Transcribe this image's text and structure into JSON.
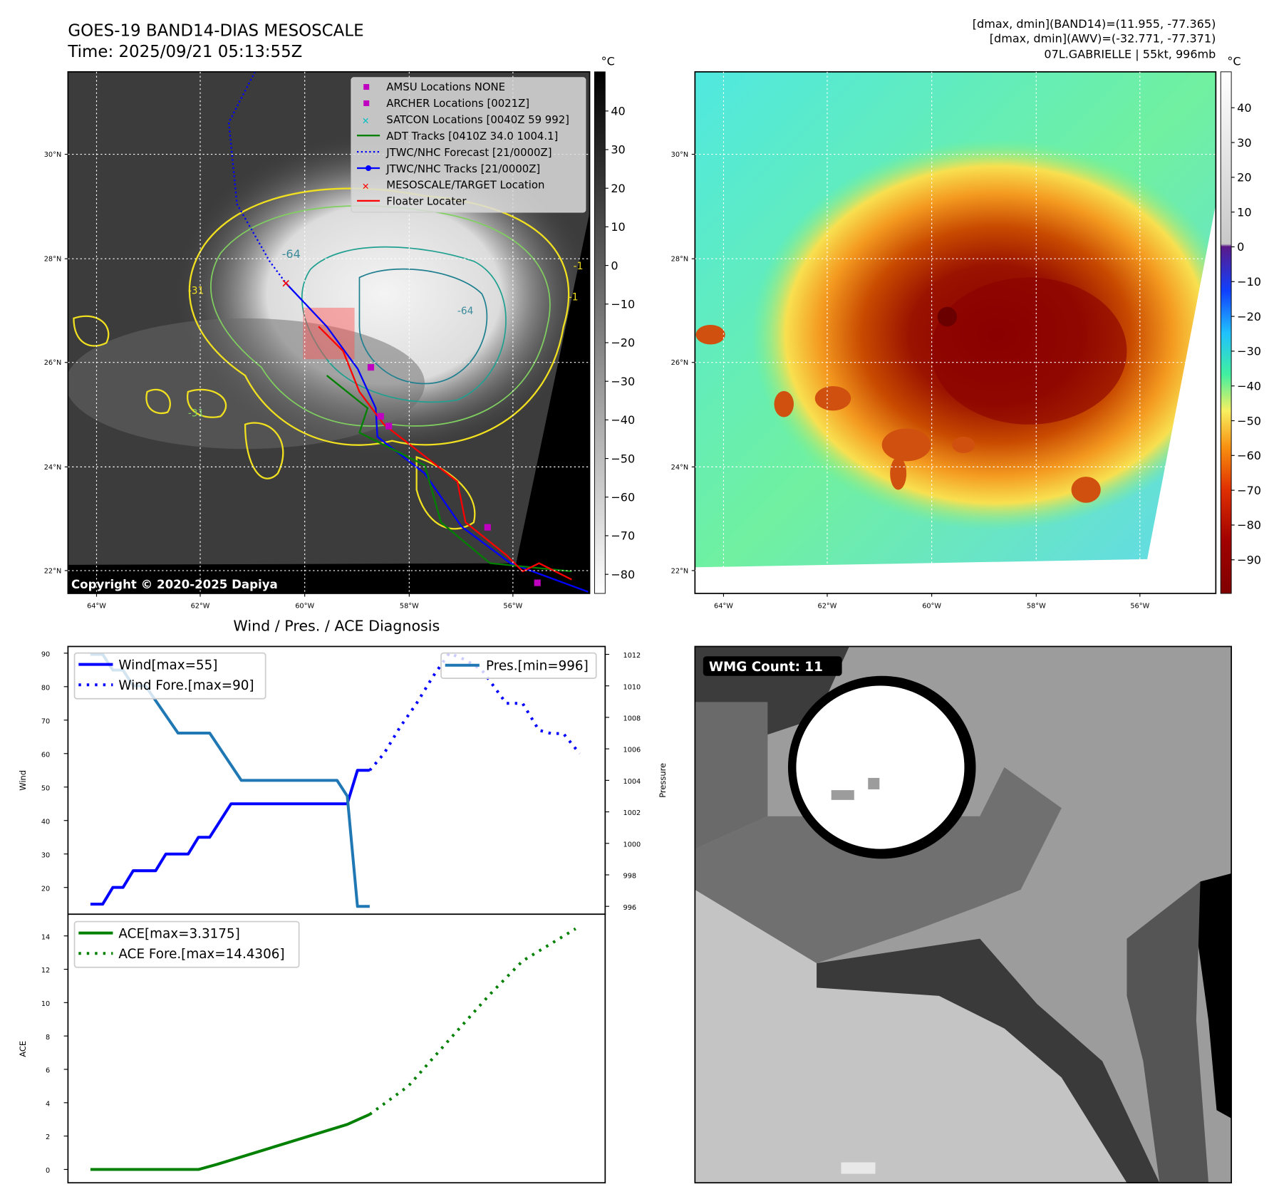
{
  "header": {
    "title": "GOES-19 BAND14-DIAS MESOSCALE",
    "time": "Time: 2025/09/21 05:13:55Z",
    "stats_band14": "[dmax, dmin](BAND14)=(11.955, -77.365)",
    "stats_awv": "[dmax, dmin](AWV)=(-32.771, -77.371)",
    "storm": "07L.GABRIELLE | 55kt, 996mb"
  },
  "map_left": {
    "unit": "°C",
    "copyright": "Copyright © 2020-2025 Dapiya",
    "lon_ticks": [
      "64°W",
      "62°W",
      "60°W",
      "58°W",
      "56°W"
    ],
    "lat_ticks": [
      "30°N",
      "28°N",
      "26°N",
      "24°N",
      "22°N"
    ],
    "colorbar_ticks": [
      "40",
      "30",
      "20",
      "10",
      "0",
      "−10",
      "−20",
      "−30",
      "−40",
      "−50",
      "−60",
      "−70",
      "−80"
    ],
    "contour_labels": [
      "-64",
      "-64",
      "-31",
      "-31",
      "-1",
      "-1"
    ],
    "legend": [
      {
        "label": "AMSU Locations NONE",
        "color": "#c000c0",
        "marker": "square"
      },
      {
        "label": "ARCHER Locations [0021Z]",
        "color": "#c000c0",
        "marker": "square"
      },
      {
        "label": "SATCON Locations [0040Z 59 992]",
        "color": "#00c0c0",
        "marker": "x"
      },
      {
        "label": "ADT Tracks [0410Z 34.0 1004.1]",
        "color": "#008000",
        "marker": "line"
      },
      {
        "label": "JTWC/NHC Forecast [21/0000Z]",
        "color": "#0000ff",
        "marker": "dotted"
      },
      {
        "label": "JTWC/NHC Tracks [21/0000Z]",
        "color": "#0000ff",
        "marker": "line-dot"
      },
      {
        "label": "MESOSCALE/TARGET Location",
        "color": "#ff0000",
        "marker": "x"
      },
      {
        "label": "Floater Locater",
        "color": "#ff0000",
        "marker": "line"
      }
    ]
  },
  "map_right": {
    "unit": "°C",
    "lon_ticks": [
      "64°W",
      "62°W",
      "60°W",
      "58°W",
      "56°W"
    ],
    "lat_ticks": [
      "30°N",
      "28°N",
      "26°N",
      "24°N",
      "22°N"
    ],
    "colorbar_ticks": [
      "40",
      "30",
      "20",
      "10",
      "0",
      "−10",
      "−20",
      "−30",
      "−40",
      "−50",
      "−60",
      "−70",
      "−80",
      "−90"
    ]
  },
  "wmg": {
    "label": "WMG Count: 11"
  },
  "chart_data": [
    {
      "type": "line",
      "title": "Wind / Pres. / ACE Diagnosis",
      "ylabel": "Wind",
      "y2label": "Pressure",
      "ylim": [
        12,
        92
      ],
      "y2lim": [
        995.5,
        1012.5
      ],
      "xlim": [
        -2.2,
        50.5
      ],
      "yticks": [
        "90",
        "80",
        "70",
        "60",
        "50",
        "40",
        "30",
        "20"
      ],
      "y2ticks": [
        "1012",
        "1010",
        "1008",
        "1006",
        "1004",
        "1002",
        "1000",
        "998",
        "996"
      ],
      "legend_left": [
        "Wind[max=55]",
        "Wind Fore.[max=90]"
      ],
      "legend_right": [
        "Pres.[min=996]"
      ],
      "series": [
        {
          "name": "Wind[max=55]",
          "axis": "left",
          "style": "solid",
          "color": "#0000ff",
          "x": [
            0,
            1.2,
            2.2,
            3.2,
            4.2,
            6.4,
            7.4,
            9.6,
            10.6,
            11.7,
            13.8,
            25.2,
            26.2,
            27.4
          ],
          "y": [
            15,
            15,
            20,
            20,
            25,
            25,
            30,
            30,
            35,
            35,
            45,
            45,
            55,
            55
          ]
        },
        {
          "name": "Wind Fore.[max=90]",
          "axis": "left",
          "style": "dotted",
          "color": "#0000ff",
          "x": [
            27.4,
            28.8,
            30.4,
            32,
            33.6,
            35.2,
            36.8,
            38.4,
            39.6,
            40.8,
            42.4,
            43.2,
            44,
            45.2,
            46.4,
            48
          ],
          "y": [
            55,
            60,
            68,
            75,
            83,
            90,
            88,
            85,
            80,
            75,
            75,
            71,
            67,
            66,
            66,
            60
          ]
        },
        {
          "name": "Pres.[min=996]",
          "axis": "right",
          "style": "solid",
          "color": "#1f77b4",
          "x": [
            0,
            1.2,
            2.2,
            3.2,
            4.2,
            5.4,
            8.6,
            11.7,
            14.8,
            24.2,
            25.2,
            26.2,
            27.4
          ],
          "y": [
            1012,
            1012,
            1011,
            1011,
            1010,
            1010,
            1007,
            1007,
            1004,
            1004,
            1003,
            996,
            996
          ]
        }
      ]
    },
    {
      "type": "line",
      "ylabel": "ACE",
      "ylim": [
        -0.8,
        15.3
      ],
      "xlim": [
        -2.2,
        50.5
      ],
      "yticks": [
        "14",
        "12",
        "10",
        "8",
        "6",
        "4",
        "2",
        "0"
      ],
      "legend": [
        "ACE[max=3.3175]",
        "ACE Fore.[max=14.4306]"
      ],
      "series": [
        {
          "name": "ACE[max=3.3175]",
          "style": "solid",
          "color": "#008000",
          "x": [
            0,
            10.6,
            12.4,
            25.2,
            27.4
          ],
          "y": [
            0,
            0,
            0.3,
            2.7,
            3.3
          ]
        },
        {
          "name": "ACE Fore.[max=14.4306]",
          "style": "dotted",
          "color": "#008000",
          "x": [
            27.4,
            31.2,
            34.8,
            39.2,
            42.4,
            47.6
          ],
          "y": [
            3.3,
            5,
            7.5,
            10.5,
            12.5,
            14.43
          ]
        }
      ]
    }
  ]
}
